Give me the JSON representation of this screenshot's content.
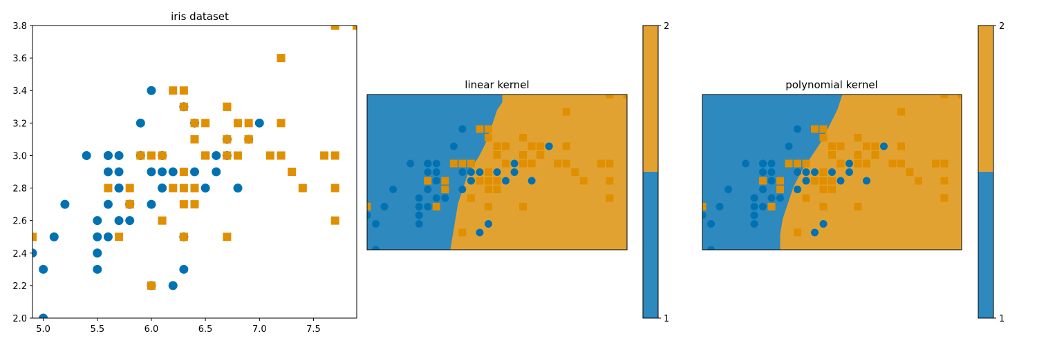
{
  "colors": {
    "class1": "#0072b2",
    "class2": "#e08f00",
    "region1": "#2e89bf",
    "region2": "#e2a232"
  },
  "chart_data": [
    {
      "type": "scatter",
      "title": "iris dataset",
      "xlim": [
        4.9,
        7.9
      ],
      "ylim": [
        2.0,
        3.8
      ],
      "xticks": [
        "5.0",
        "5.5",
        "6.0",
        "6.5",
        "7.0",
        "7.5"
      ],
      "xtick_values": [
        5.0,
        5.5,
        6.0,
        6.5,
        7.0,
        7.5
      ],
      "yticks": [
        "2.0",
        "2.2",
        "2.4",
        "2.6",
        "2.8",
        "3.0",
        "3.2",
        "3.4",
        "3.6",
        "3.8"
      ],
      "ytick_values": [
        2.0,
        2.2,
        2.4,
        2.6,
        2.8,
        3.0,
        3.2,
        3.4,
        3.6,
        3.8
      ],
      "grid": false,
      "series": [
        {
          "marker": "circle",
          "color": "#0072b2",
          "points": [
            [
              7.0,
              3.2
            ],
            [
              6.4,
              3.2
            ],
            [
              6.9,
              3.1
            ],
            [
              5.5,
              2.3
            ],
            [
              6.5,
              2.8
            ],
            [
              5.7,
              2.8
            ],
            [
              6.3,
              3.3
            ],
            [
              4.9,
              2.4
            ],
            [
              6.6,
              2.9
            ],
            [
              5.2,
              2.7
            ],
            [
              5.0,
              2.0
            ],
            [
              5.9,
              3.0
            ],
            [
              6.0,
              2.2
            ],
            [
              6.1,
              2.9
            ],
            [
              5.6,
              2.9
            ],
            [
              6.7,
              3.1
            ],
            [
              5.6,
              3.0
            ],
            [
              5.8,
              2.7
            ],
            [
              6.2,
              2.2
            ],
            [
              5.6,
              2.5
            ],
            [
              5.9,
              3.2
            ],
            [
              6.1,
              2.8
            ],
            [
              6.3,
              2.5
            ],
            [
              6.1,
              2.8
            ],
            [
              6.4,
              2.9
            ],
            [
              6.6,
              3.0
            ],
            [
              6.8,
              2.8
            ],
            [
              6.7,
              3.0
            ],
            [
              6.0,
              2.9
            ],
            [
              5.7,
              2.6
            ],
            [
              5.5,
              2.4
            ],
            [
              5.5,
              2.4
            ],
            [
              5.8,
              2.7
            ],
            [
              6.0,
              2.7
            ],
            [
              5.4,
              3.0
            ],
            [
              6.0,
              3.4
            ],
            [
              6.7,
              3.1
            ],
            [
              6.3,
              2.3
            ],
            [
              5.6,
              3.0
            ],
            [
              5.5,
              2.5
            ],
            [
              5.5,
              2.6
            ],
            [
              6.1,
              3.0
            ],
            [
              5.8,
              2.6
            ],
            [
              5.0,
              2.3
            ],
            [
              5.6,
              2.7
            ],
            [
              5.7,
              3.0
            ],
            [
              5.7,
              2.9
            ],
            [
              6.2,
              2.9
            ],
            [
              5.1,
              2.5
            ],
            [
              5.7,
              2.8
            ]
          ]
        },
        {
          "marker": "square",
          "color": "#e08f00",
          "points": [
            [
              6.3,
              3.3
            ],
            [
              5.8,
              2.7
            ],
            [
              7.1,
              3.0
            ],
            [
              6.3,
              2.9
            ],
            [
              6.5,
              3.0
            ],
            [
              7.6,
              3.0
            ],
            [
              4.9,
              2.5
            ],
            [
              7.3,
              2.9
            ],
            [
              6.7,
              2.5
            ],
            [
              7.2,
              3.6
            ],
            [
              6.5,
              3.2
            ],
            [
              6.4,
              2.7
            ],
            [
              6.8,
              3.0
            ],
            [
              5.7,
              2.5
            ],
            [
              5.8,
              2.8
            ],
            [
              6.4,
              3.2
            ],
            [
              6.5,
              3.0
            ],
            [
              7.7,
              3.8
            ],
            [
              7.7,
              2.6
            ],
            [
              6.0,
              2.2
            ],
            [
              6.9,
              3.2
            ],
            [
              5.6,
              2.8
            ],
            [
              7.7,
              2.8
            ],
            [
              6.3,
              2.7
            ],
            [
              6.7,
              3.3
            ],
            [
              7.2,
              3.2
            ],
            [
              6.2,
              2.8
            ],
            [
              6.1,
              3.0
            ],
            [
              6.4,
              2.8
            ],
            [
              7.2,
              3.0
            ],
            [
              7.4,
              2.8
            ],
            [
              7.9,
              3.8
            ],
            [
              6.4,
              2.8
            ],
            [
              6.3,
              2.8
            ],
            [
              6.1,
              2.6
            ],
            [
              7.7,
              3.0
            ],
            [
              6.3,
              3.4
            ],
            [
              6.4,
              3.1
            ],
            [
              6.0,
              3.0
            ],
            [
              6.9,
              3.1
            ],
            [
              6.7,
              3.1
            ],
            [
              6.9,
              3.1
            ],
            [
              5.8,
              2.7
            ],
            [
              6.8,
              3.2
            ],
            [
              6.7,
              3.3
            ],
            [
              6.7,
              3.0
            ],
            [
              6.3,
              2.5
            ],
            [
              6.5,
              3.0
            ],
            [
              6.2,
              3.4
            ],
            [
              5.9,
              3.0
            ]
          ]
        }
      ]
    },
    {
      "type": "heatmap",
      "title": "linear kernel",
      "boundary_in_pixels_of_grid": "diagonal",
      "classes": [
        1,
        2
      ],
      "overlay": "same points as iris dataset"
    },
    {
      "type": "heatmap",
      "title": "polynomial kernel",
      "classes": [
        1,
        2
      ],
      "overlay": "same points as iris dataset"
    }
  ],
  "colorbars": [
    {
      "ticks": [
        "1",
        "2"
      ]
    },
    {
      "ticks": [
        "1",
        "2"
      ]
    }
  ]
}
